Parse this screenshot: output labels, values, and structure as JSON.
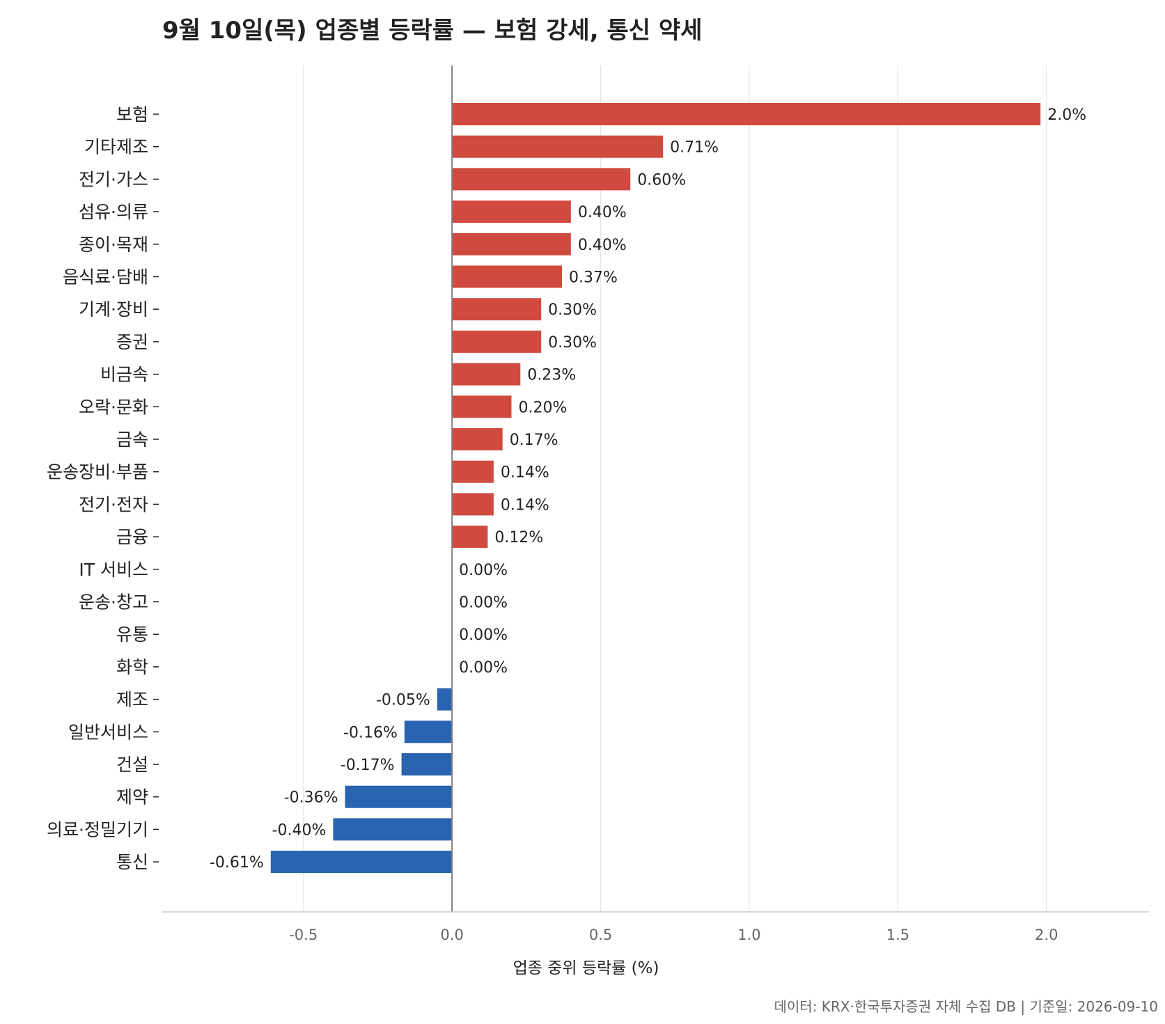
{
  "chart_data": {
    "type": "bar",
    "orientation": "horizontal",
    "title": "9월 10일(목) 업종별 등락률 — 보험 강세, 통신 약세",
    "xlabel": "업종 중위 등락률 (%)",
    "ylabel": "",
    "xlim": [
      -0.975,
      2.345
    ],
    "xticks": [
      -0.5,
      0.0,
      0.5,
      1.0,
      1.5,
      2.0
    ],
    "xtick_labels": [
      "-0.5",
      "0.0",
      "0.5",
      "1.0",
      "1.5",
      "2.0"
    ],
    "grid": "x",
    "categories": [
      "보험",
      "기타제조",
      "전기·가스",
      "섬유·의류",
      "종이·목재",
      "음식료·담배",
      "기계·장비",
      "증권",
      "비금속",
      "오락·문화",
      "금속",
      "운송장비·부품",
      "전기·전자",
      "금융",
      "IT 서비스",
      "운송·창고",
      "유통",
      "화학",
      "제조",
      "일반서비스",
      "건설",
      "제약",
      "의료·정밀기기",
      "통신"
    ],
    "values": [
      1.98,
      0.71,
      0.6,
      0.4,
      0.4,
      0.37,
      0.3,
      0.3,
      0.23,
      0.2,
      0.17,
      0.14,
      0.14,
      0.12,
      0.0,
      0.0,
      0.0,
      0.0,
      -0.05,
      -0.16,
      -0.17,
      -0.36,
      -0.4,
      -0.61
    ],
    "value_labels": [
      "2.0%",
      "0.71%",
      "0.60%",
      "0.40%",
      "0.40%",
      "0.37%",
      "0.30%",
      "0.30%",
      "0.23%",
      "0.20%",
      "0.17%",
      "0.14%",
      "0.14%",
      "0.12%",
      "0.00%",
      "0.00%",
      "0.00%",
      "0.00%",
      "-0.05%",
      "-0.16%",
      "-0.17%",
      "-0.36%",
      "-0.40%",
      "-0.61%"
    ],
    "colors": {
      "positive": "#d14a3f",
      "negative": "#2a63b0",
      "zero_line": "#808080",
      "grid": "#e4e4e4",
      "axis": "#cccccc"
    }
  },
  "source_note": "데이터: KRX·한국투자증권 자체 수집 DB  |  기준일: 2026-09-10"
}
